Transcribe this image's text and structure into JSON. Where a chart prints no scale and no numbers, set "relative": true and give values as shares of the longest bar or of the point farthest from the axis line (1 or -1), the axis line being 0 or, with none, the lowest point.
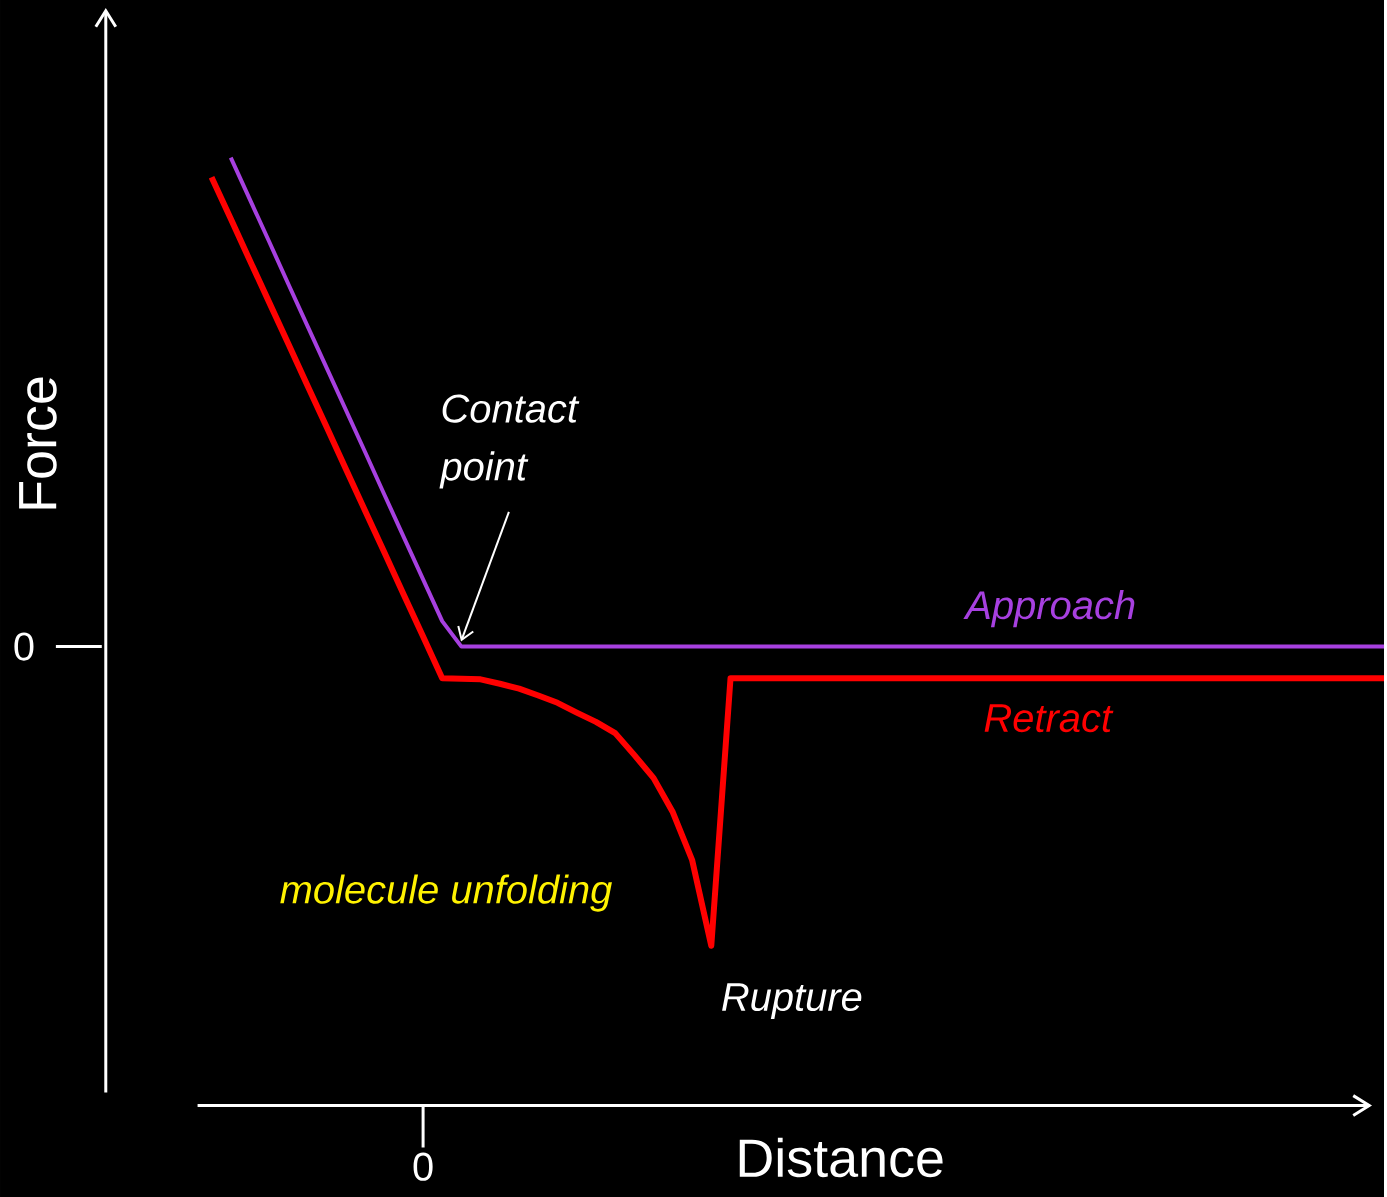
{
  "chart_data": {
    "type": "line",
    "relative": true,
    "xlabel": "Distance",
    "ylabel": "Force",
    "categories": [
      null,
      null,
      null,
      null,
      null,
      null,
      null,
      null,
      null,
      null,
      null,
      null,
      null,
      null,
      null,
      null,
      null,
      null,
      null,
      null,
      null,
      null,
      null,
      null,
      null,
      null,
      null,
      null,
      null,
      null,
      null,
      null,
      null,
      null,
      null,
      null,
      null,
      null,
      null,
      null,
      null,
      null,
      null,
      null,
      null,
      null,
      null,
      null,
      null,
      null,
      null,
      null,
      null,
      null,
      null,
      null,
      null,
      null,
      null,
      null,
      null,
      null
    ],
    "series": [
      {
        "name": "Approach",
        "color": "#a740e0",
        "values": [
          null,
          1.0,
          0.914,
          0.828,
          0.741,
          0.655,
          0.569,
          0.483,
          0.397,
          0.31,
          0.224,
          0.138,
          0.052,
          0,
          0,
          0,
          0,
          0,
          0,
          0,
          0,
          0,
          0,
          0,
          0,
          0,
          0,
          0,
          0,
          0,
          0,
          0,
          0,
          0,
          0,
          0,
          0,
          0,
          0,
          0,
          0,
          0,
          0,
          0,
          0,
          0,
          0,
          0,
          0,
          0,
          0,
          0,
          0,
          0,
          0,
          0,
          0,
          0,
          0,
          0,
          0,
          0
        ]
      },
      {
        "name": "Retract",
        "color": "#ff0000",
        "values": [
          0.96,
          0.875,
          0.789,
          0.704,
          0.619,
          0.533,
          0.448,
          0.362,
          0.277,
          0.192,
          0.106,
          0.021,
          -0.065,
          -0.066,
          -0.067,
          -0.076,
          -0.086,
          -0.1,
          -0.115,
          -0.135,
          -0.154,
          -0.177,
          -0.222,
          -0.269,
          -0.339,
          -0.436,
          -0.612,
          -0.065,
          -0.065,
          -0.065,
          -0.065,
          -0.065,
          -0.065,
          -0.065,
          -0.065,
          -0.065,
          -0.065,
          -0.065,
          -0.065,
          -0.065,
          -0.065,
          -0.065,
          -0.065,
          -0.065,
          -0.065,
          -0.065,
          -0.065,
          -0.065,
          -0.065,
          -0.065,
          -0.065,
          -0.065,
          -0.065,
          -0.065,
          -0.065,
          -0.065,
          -0.065,
          -0.065,
          -0.065,
          -0.065,
          -0.065,
          -0.065
        ]
      }
    ],
    "annotations": [
      "Contact point",
      "molecule unfolding",
      "Rupture",
      "0",
      "0"
    ]
  }
}
